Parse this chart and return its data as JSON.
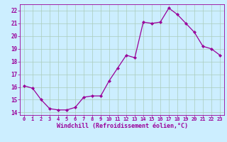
{
  "x": [
    0,
    1,
    2,
    3,
    4,
    5,
    6,
    7,
    8,
    9,
    10,
    11,
    12,
    13,
    14,
    15,
    16,
    17,
    18,
    19,
    20,
    21,
    22,
    23
  ],
  "y": [
    16.1,
    15.9,
    15.0,
    14.3,
    14.2,
    14.2,
    14.4,
    15.2,
    15.3,
    15.3,
    16.5,
    17.5,
    18.5,
    18.3,
    21.1,
    21.0,
    21.1,
    22.2,
    21.7,
    21.0,
    20.3,
    19.2,
    19.0,
    18.5
  ],
  "xlim": [
    -0.5,
    23.5
  ],
  "ylim": [
    13.8,
    22.5
  ],
  "yticks": [
    14,
    15,
    16,
    17,
    18,
    19,
    20,
    21,
    22
  ],
  "xticks": [
    0,
    1,
    2,
    3,
    4,
    5,
    6,
    7,
    8,
    9,
    10,
    11,
    12,
    13,
    14,
    15,
    16,
    17,
    18,
    19,
    20,
    21,
    22,
    23
  ],
  "xlabel": "Windchill (Refroidissement éolien,°C)",
  "line_color": "#990099",
  "marker_color": "#990099",
  "bg_color": "#cceeff",
  "grid_color": "#aaccbb",
  "tick_color": "#990099",
  "label_color": "#990099"
}
